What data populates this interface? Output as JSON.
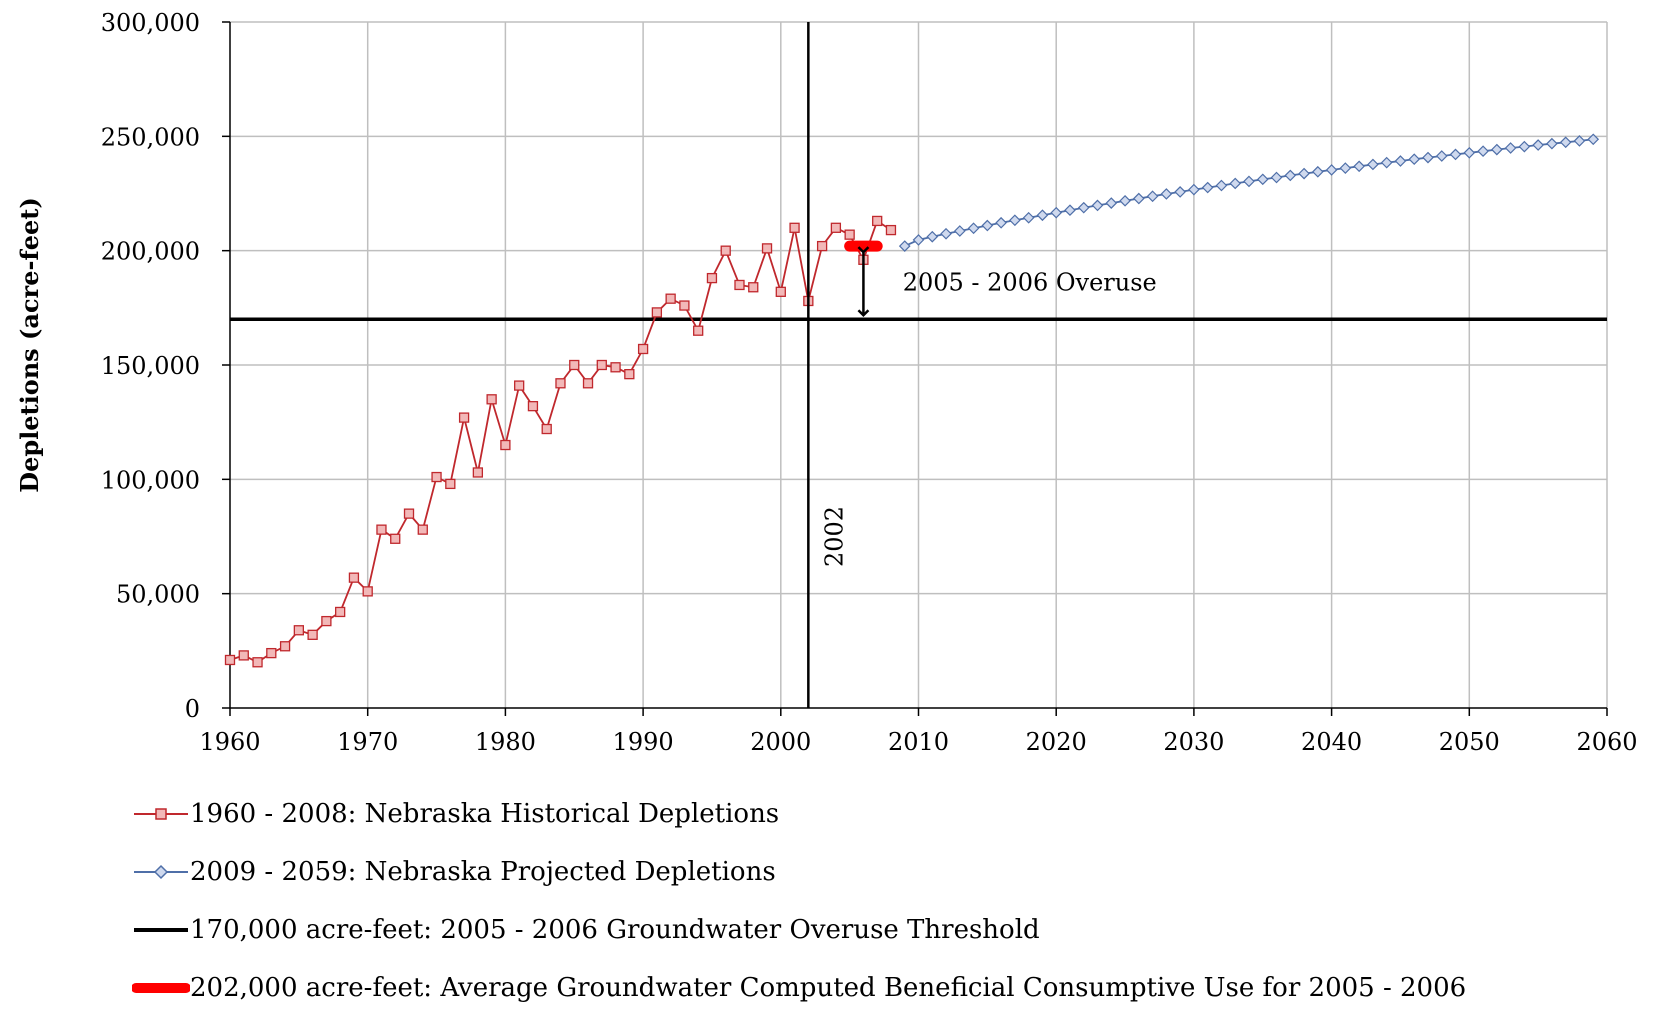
{
  "chart_data": {
    "type": "line",
    "title": "",
    "xlabel": "",
    "ylabel": "Depletions (acre-feet)",
    "xlim": [
      1960,
      2060
    ],
    "ylim": [
      0,
      300000
    ],
    "x_ticks": [
      "1960",
      "1970",
      "1980",
      "1990",
      "2000",
      "2010",
      "2020",
      "2030",
      "2040",
      "2050",
      "2060"
    ],
    "y_ticks": [
      "0",
      "50,000",
      "100,000",
      "150,000",
      "200,000",
      "250,000",
      "300,000"
    ],
    "grid": true,
    "legend_position": "bottom",
    "series": [
      {
        "name": "1960 - 2008:  Nebraska Historical Depletions",
        "color": "#c0282d",
        "marker": "square",
        "x": [
          1960,
          1961,
          1962,
          1963,
          1964,
          1965,
          1966,
          1967,
          1968,
          1969,
          1970,
          1971,
          1972,
          1973,
          1974,
          1975,
          1976,
          1977,
          1978,
          1979,
          1980,
          1981,
          1982,
          1983,
          1984,
          1985,
          1986,
          1987,
          1988,
          1989,
          1990,
          1991,
          1992,
          1993,
          1994,
          1995,
          1996,
          1997,
          1998,
          1999,
          2000,
          2001,
          2002,
          2003,
          2004,
          2005,
          2006,
          2007,
          2008
        ],
        "y": [
          21000,
          23000,
          20000,
          24000,
          27000,
          34000,
          32000,
          38000,
          42000,
          57000,
          51000,
          78000,
          74000,
          85000,
          78000,
          101000,
          98000,
          127000,
          103000,
          135000,
          115000,
          141000,
          132000,
          122000,
          142000,
          150000,
          142000,
          150000,
          149000,
          146000,
          157000,
          173000,
          179000,
          176000,
          165000,
          188000,
          200000,
          185000,
          184000,
          201000,
          182000,
          210000,
          178000,
          202000,
          210000,
          207000,
          196000,
          213000,
          209000
        ]
      },
      {
        "name": "2009 - 2059:  Nebraska Projected Depletions",
        "color": "#4f6fa8",
        "marker": "diamond",
        "x": [
          2009,
          2010,
          2011,
          2012,
          2013,
          2014,
          2015,
          2016,
          2017,
          2018,
          2019,
          2020,
          2021,
          2022,
          2023,
          2024,
          2025,
          2026,
          2027,
          2028,
          2029,
          2030,
          2031,
          2032,
          2033,
          2034,
          2035,
          2036,
          2037,
          2038,
          2039,
          2040,
          2041,
          2042,
          2043,
          2044,
          2045,
          2046,
          2047,
          2048,
          2049,
          2050,
          2051,
          2052,
          2053,
          2054,
          2055,
          2056,
          2057,
          2058,
          2059
        ],
        "y": [
          202000,
          204700,
          206100,
          207400,
          208600,
          209800,
          211000,
          212200,
          213300,
          214400,
          215500,
          216600,
          217700,
          218800,
          219800,
          220800,
          221800,
          222800,
          223800,
          224800,
          225700,
          226700,
          227600,
          228500,
          229400,
          230300,
          231200,
          232000,
          232900,
          233700,
          234500,
          235300,
          236100,
          236900,
          237700,
          238500,
          239200,
          240000,
          240700,
          241400,
          242100,
          242800,
          243500,
          244200,
          244900,
          245500,
          246200,
          246800,
          247400,
          248000,
          248700
        ]
      },
      {
        "name": "170,000 acre-feet:  2005 - 2006 Groundwater Overuse Threshold",
        "color": "#000000",
        "marker": "none",
        "x": [
          1960,
          2060
        ],
        "y": [
          170000,
          170000
        ]
      },
      {
        "name": "202,000 acre-feet:  Average Groundwater Computed Beneficial Consumptive Use for 2005 - 2006",
        "color": "#ff0000",
        "marker": "none",
        "x": [
          2005,
          2007
        ],
        "y": [
          202000,
          202000
        ]
      }
    ],
    "annotations": [
      {
        "text": "2005 - 2006  Overuse",
        "x": 2009,
        "y": 186000
      },
      {
        "text": "2002",
        "type": "vertical-line",
        "x": 2002
      }
    ],
    "overuse_arrow": {
      "x": 2006,
      "y_from": 170000,
      "y_to": 202000
    }
  }
}
